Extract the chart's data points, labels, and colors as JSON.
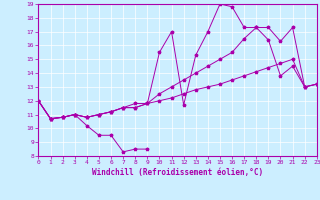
{
  "xlabel": "Windchill (Refroidissement éolien,°C)",
  "xlim": [
    0,
    23
  ],
  "ylim": [
    8,
    19
  ],
  "xticks": [
    0,
    1,
    2,
    3,
    4,
    5,
    6,
    7,
    8,
    9,
    10,
    11,
    12,
    13,
    14,
    15,
    16,
    17,
    18,
    19,
    20,
    21,
    22,
    23
  ],
  "yticks": [
    8,
    9,
    10,
    11,
    12,
    13,
    14,
    15,
    16,
    17,
    18,
    19
  ],
  "bg_color": "#cceeff",
  "line_color": "#aa00aa",
  "line1_x": [
    0,
    1,
    2,
    3,
    4,
    5,
    6,
    7,
    8,
    9
  ],
  "line1_y": [
    12.0,
    10.7,
    10.8,
    11.0,
    10.2,
    9.5,
    9.5,
    8.3,
    8.5,
    8.5
  ],
  "line2_x": [
    0,
    1,
    2,
    3,
    4,
    5,
    6,
    7,
    8,
    9,
    10,
    11,
    12,
    13,
    14,
    15,
    16,
    17,
    18,
    19,
    20,
    21,
    22,
    23
  ],
  "line2_y": [
    12.0,
    10.7,
    10.8,
    11.0,
    10.8,
    11.0,
    11.2,
    11.5,
    11.8,
    11.8,
    15.5,
    17.0,
    11.7,
    15.3,
    17.0,
    19.0,
    18.8,
    17.3,
    17.3,
    16.4,
    13.8,
    14.5,
    13.0,
    13.2
  ],
  "line3_x": [
    0,
    1,
    2,
    3,
    4,
    5,
    6,
    7,
    8,
    9,
    10,
    11,
    12,
    13,
    14,
    15,
    16,
    17,
    18,
    19,
    20,
    21,
    22,
    23
  ],
  "line3_y": [
    12.0,
    10.7,
    10.8,
    11.0,
    10.8,
    11.0,
    11.2,
    11.5,
    11.5,
    11.8,
    12.0,
    12.2,
    12.5,
    12.8,
    13.0,
    13.2,
    13.5,
    13.8,
    14.1,
    14.4,
    14.7,
    15.0,
    13.0,
    13.2
  ],
  "line4_x": [
    0,
    1,
    2,
    3,
    4,
    5,
    6,
    7,
    8,
    9,
    10,
    11,
    12,
    13,
    14,
    15,
    16,
    17,
    18,
    19,
    20,
    21,
    22,
    23
  ],
  "line4_y": [
    12.0,
    10.7,
    10.8,
    11.0,
    10.8,
    11.0,
    11.2,
    11.5,
    11.5,
    11.8,
    12.5,
    13.0,
    13.5,
    14.0,
    14.5,
    15.0,
    15.5,
    16.5,
    17.3,
    17.3,
    16.3,
    17.3,
    13.0,
    13.2
  ]
}
